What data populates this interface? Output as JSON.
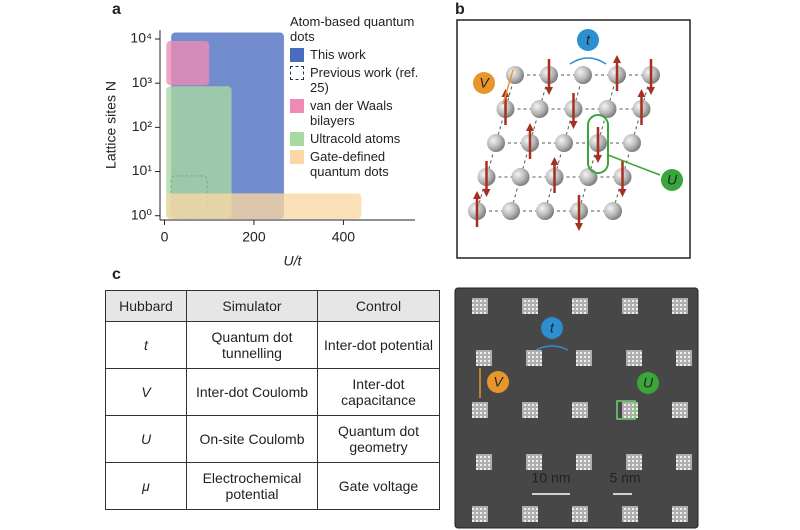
{
  "panel_labels": {
    "a": "a",
    "b": "b",
    "c": "c"
  },
  "chart_data": {
    "type": "region",
    "xlabel": "U/t",
    "ylabel": "Lattice sites N",
    "legend_title": "Atom-based quantum dots",
    "xlim": [
      -10,
      560
    ],
    "xticks": [
      0,
      200,
      400
    ],
    "ylim": [
      0.8,
      16000
    ],
    "log_y": true,
    "yticks": [
      {
        "value": 1,
        "label": "10⁰"
      },
      {
        "value": 10,
        "label": "10¹"
      },
      {
        "value": 100,
        "label": "10²"
      },
      {
        "value": 1000,
        "label": "10³"
      },
      {
        "value": 10000,
        "label": "10⁴"
      }
    ],
    "series": [
      {
        "name": "This work",
        "color": "#4a6cbf",
        "x": [
          15,
          267
        ],
        "y": [
          0.85,
          14000
        ]
      },
      {
        "name": "Previous work (ref. 25)",
        "color": "#1d3557",
        "dashed": true,
        "x": [
          15,
          95
        ],
        "y": [
          1,
          8
        ]
      },
      {
        "name": "van der Waals bilayers",
        "color": "#ee8ab3",
        "x": [
          4,
          100
        ],
        "y": [
          900,
          9000
        ]
      },
      {
        "name": "Ultracold atoms",
        "color": "#a9d9a2",
        "x": [
          4,
          150
        ],
        "y": [
          0.85,
          850
        ]
      },
      {
        "name": "Gate-defined quantum dots",
        "color": "#fad7a3",
        "x": [
          4,
          440
        ],
        "y": [
          0.85,
          3.2
        ]
      }
    ]
  },
  "diagram": {
    "t": "t",
    "V": "V",
    "U": "U"
  },
  "table": {
    "header": [
      "Hubbard",
      "Simulator",
      "Control"
    ],
    "rows": [
      [
        "t",
        "Quantum dot tunnelling",
        "Inter-dot potential"
      ],
      [
        "V",
        "Inter-dot Coulomb",
        "Inter-dot capacitance"
      ],
      [
        "U",
        "On-site Coulomb",
        "Quantum dot geometry"
      ],
      [
        "μ",
        "Electrochemical potential",
        "Gate voltage"
      ]
    ]
  },
  "image": {
    "t": "t",
    "V": "V",
    "U": "U",
    "scale_large": "10 nm",
    "scale_small": "5 nm"
  }
}
